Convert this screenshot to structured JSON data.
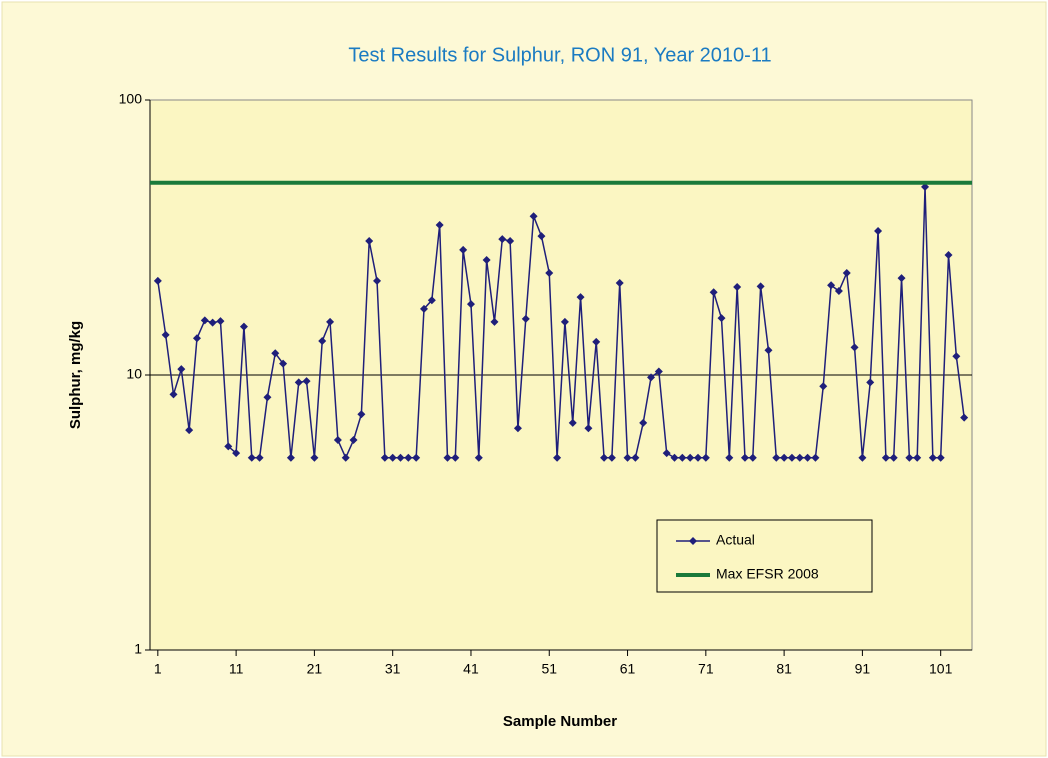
{
  "chart_data": {
    "type": "line",
    "title": "Test Results for Sulphur, RON 91, Year 2010-11",
    "x_label": "Sample Number",
    "y_label": "Sulphur, mg/kg",
    "log_y": true,
    "xlim": [
      0,
      105
    ],
    "xticks": [
      1,
      11,
      21,
      31,
      41,
      51,
      61,
      71,
      81,
      91,
      101
    ],
    "ylim": [
      1,
      100
    ],
    "yticks": [
      1,
      10,
      100
    ],
    "grid": true,
    "series": [
      {
        "name": "Actual",
        "color": "#1f1f7a",
        "x": [
          1,
          2,
          3,
          4,
          5,
          6,
          7,
          8,
          9,
          10,
          11,
          12,
          13,
          14,
          15,
          16,
          17,
          18,
          19,
          20,
          21,
          22,
          23,
          24,
          25,
          26,
          27,
          28,
          29,
          30,
          31,
          32,
          33,
          34,
          35,
          36,
          37,
          38,
          39,
          40,
          41,
          42,
          43,
          44,
          45,
          46,
          47,
          48,
          49,
          50,
          51,
          52,
          53,
          54,
          55,
          56,
          57,
          58,
          59,
          60,
          61,
          62,
          63,
          64,
          65,
          66,
          67,
          68,
          69,
          70,
          71,
          72,
          73,
          74,
          75,
          76,
          77,
          78,
          79,
          80,
          81,
          82,
          83,
          84,
          85,
          86,
          87,
          88,
          89,
          90,
          91,
          92,
          93,
          94,
          95,
          96,
          97,
          98,
          99,
          100,
          101,
          102,
          103,
          104
        ],
        "values": [
          22,
          14,
          8.5,
          10.5,
          6.3,
          13.6,
          15.8,
          15.5,
          15.7,
          5.5,
          5.2,
          15,
          5,
          5,
          8.3,
          12,
          11,
          5,
          9.4,
          9.5,
          5,
          13.3,
          15.6,
          5.8,
          5,
          5.8,
          7.2,
          30.7,
          22,
          5,
          5,
          5,
          5,
          5,
          17.4,
          18.7,
          35.1,
          5,
          5,
          28.5,
          18.1,
          5,
          26.2,
          15.6,
          31.2,
          30.7,
          6.4,
          16,
          37.8,
          32,
          23.5,
          5,
          15.6,
          6.7,
          19.2,
          6.4,
          13.2,
          5,
          5,
          21.6,
          5,
          5,
          6.7,
          9.8,
          10.3,
          5.2,
          5,
          5,
          5,
          5,
          5,
          20,
          16.1,
          5,
          20.9,
          5,
          5,
          21,
          12.3,
          5,
          5,
          5,
          5,
          5,
          5,
          9.1,
          21.2,
          20.2,
          23.5,
          12.6,
          5,
          9.4,
          33.4,
          5,
          5,
          22.5,
          5,
          5,
          48.3,
          5,
          5,
          27.3,
          11.7,
          7
        ]
      },
      {
        "name": "Max EFSR 2008",
        "color": "#1a7a3a",
        "value": 50
      }
    ]
  }
}
